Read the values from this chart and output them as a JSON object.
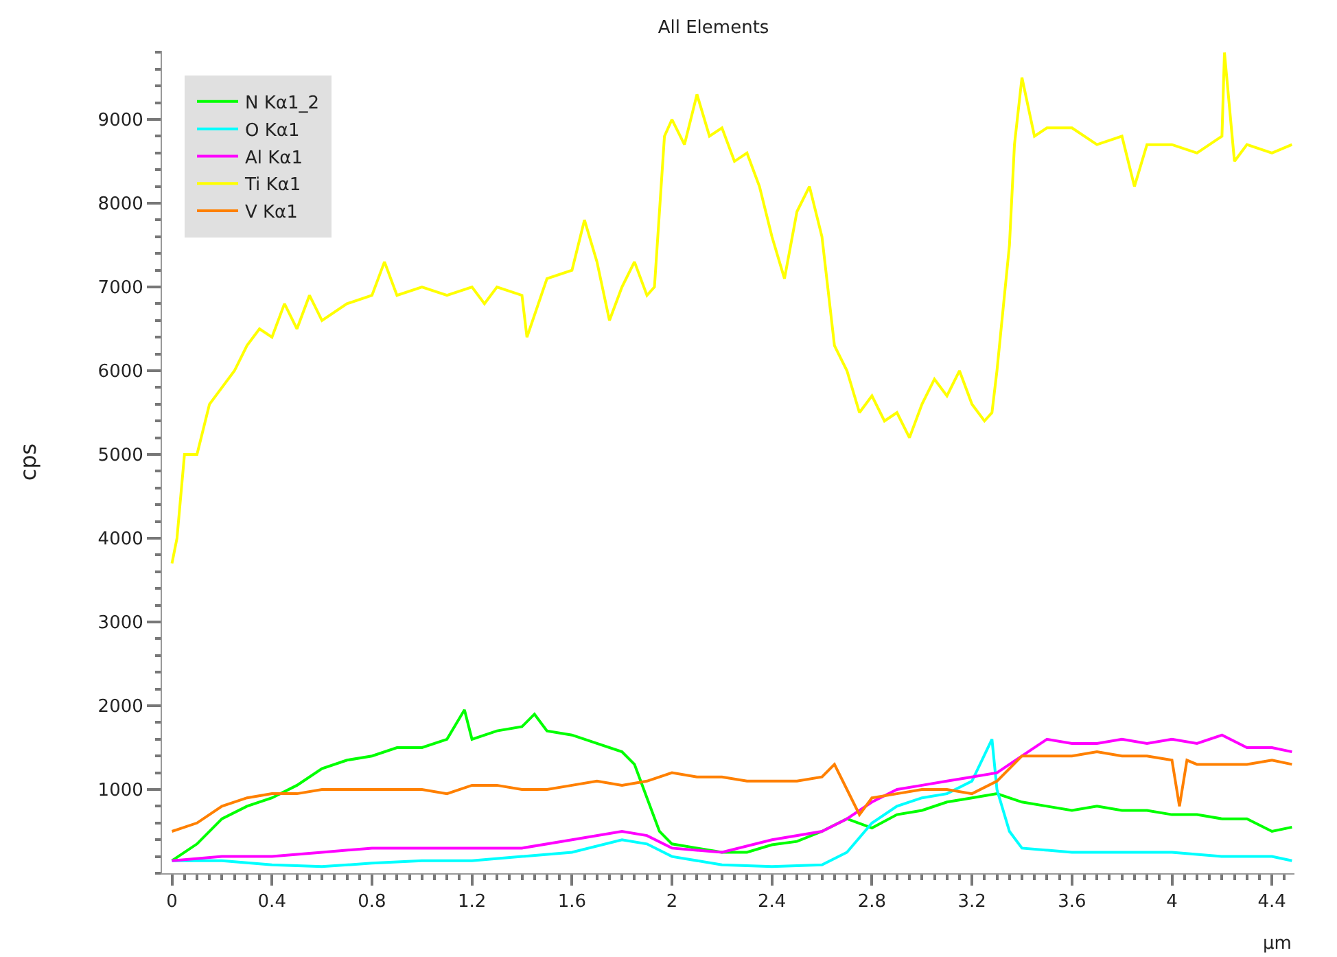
{
  "chart_data": {
    "type": "line",
    "title": "All Elements",
    "xlabel": "µm",
    "ylabel": "cps",
    "xlim": [
      -0.04,
      4.49
    ],
    "xticks": [
      0,
      0.4,
      0.8,
      1.2,
      1.6,
      2,
      2.4,
      2.8,
      3.2,
      3.6,
      4,
      4.4
    ],
    "ylim": [
      0,
      9820
    ],
    "yticks": [
      1000,
      2000,
      3000,
      4000,
      5000,
      6000,
      7000,
      8000,
      9000
    ],
    "grid": false,
    "legend": "top left",
    "marker": "none",
    "line_style": "solid",
    "series": [
      {
        "name": "N Kα1_2",
        "color": "#00ff00",
        "x": [
          0,
          0.1,
          0.2,
          0.3,
          0.4,
          0.5,
          0.6,
          0.7,
          0.8,
          0.9,
          1.0,
          1.1,
          1.17,
          1.2,
          1.3,
          1.4,
          1.45,
          1.5,
          1.6,
          1.7,
          1.8,
          1.85,
          1.9,
          1.95,
          2.0,
          2.1,
          2.2,
          2.3,
          2.4,
          2.5,
          2.6,
          2.7,
          2.8,
          2.9,
          3.0,
          3.1,
          3.2,
          3.3,
          3.4,
          3.5,
          3.6,
          3.7,
          3.8,
          3.9,
          4.0,
          4.1,
          4.2,
          4.3,
          4.4,
          4.48
        ],
        "values": [
          150,
          350,
          650,
          800,
          900,
          1050,
          1250,
          1350,
          1400,
          1500,
          1500,
          1600,
          1950,
          1600,
          1700,
          1750,
          1900,
          1700,
          1650,
          1550,
          1450,
          1300,
          900,
          500,
          350,
          300,
          250,
          250,
          340,
          380,
          500,
          650,
          540,
          700,
          750,
          850,
          900,
          950,
          850,
          800,
          750,
          800,
          750,
          750,
          700,
          700,
          650,
          650,
          500,
          550
        ]
      },
      {
        "name": "O Kα1",
        "color": "#00ffff",
        "x": [
          0,
          0.2,
          0.4,
          0.6,
          0.8,
          1.0,
          1.2,
          1.4,
          1.6,
          1.8,
          1.9,
          2.0,
          2.2,
          2.4,
          2.6,
          2.7,
          2.8,
          2.9,
          3.0,
          3.1,
          3.2,
          3.28,
          3.3,
          3.35,
          3.4,
          3.6,
          3.8,
          4.0,
          4.2,
          4.4,
          4.48
        ],
        "values": [
          150,
          150,
          100,
          80,
          120,
          150,
          150,
          200,
          250,
          400,
          350,
          200,
          100,
          80,
          100,
          250,
          600,
          800,
          900,
          950,
          1100,
          1600,
          1000,
          500,
          300,
          250,
          250,
          250,
          200,
          200,
          150
        ]
      },
      {
        "name": "Al Kα1",
        "color": "#ff00ff",
        "x": [
          0,
          0.2,
          0.4,
          0.6,
          0.8,
          1.0,
          1.2,
          1.4,
          1.6,
          1.8,
          1.9,
          2.0,
          2.2,
          2.4,
          2.6,
          2.7,
          2.8,
          2.9,
          3.0,
          3.1,
          3.2,
          3.3,
          3.4,
          3.5,
          3.6,
          3.7,
          3.8,
          3.9,
          4.0,
          4.1,
          4.2,
          4.3,
          4.4,
          4.48
        ],
        "values": [
          150,
          200,
          200,
          250,
          300,
          300,
          300,
          300,
          400,
          500,
          450,
          300,
          250,
          400,
          500,
          650,
          850,
          1000,
          1050,
          1100,
          1150,
          1200,
          1400,
          1600,
          1550,
          1550,
          1600,
          1550,
          1600,
          1550,
          1650,
          1500,
          1500,
          1450
        ]
      },
      {
        "name": "Ti Kα1",
        "color": "#ffff00",
        "x": [
          0,
          0.02,
          0.05,
          0.1,
          0.15,
          0.2,
          0.25,
          0.3,
          0.35,
          0.4,
          0.45,
          0.5,
          0.55,
          0.6,
          0.7,
          0.8,
          0.85,
          0.9,
          1.0,
          1.1,
          1.2,
          1.25,
          1.3,
          1.4,
          1.42,
          1.5,
          1.6,
          1.65,
          1.7,
          1.75,
          1.8,
          1.85,
          1.9,
          1.93,
          1.97,
          2.0,
          2.05,
          2.1,
          2.15,
          2.2,
          2.25,
          2.3,
          2.35,
          2.4,
          2.45,
          2.5,
          2.55,
          2.6,
          2.65,
          2.7,
          2.75,
          2.8,
          2.85,
          2.9,
          2.95,
          3.0,
          3.05,
          3.1,
          3.15,
          3.2,
          3.25,
          3.28,
          3.3,
          3.35,
          3.37,
          3.4,
          3.45,
          3.5,
          3.6,
          3.7,
          3.8,
          3.85,
          3.9,
          4.0,
          4.1,
          4.2,
          4.21,
          4.25,
          4.3,
          4.4,
          4.48
        ],
        "values": [
          3700,
          4000,
          5000,
          5000,
          5600,
          5800,
          6000,
          6300,
          6500,
          6400,
          6800,
          6500,
          6900,
          6600,
          6800,
          6900,
          7300,
          6900,
          7000,
          6900,
          7000,
          6800,
          7000,
          6900,
          6400,
          7100,
          7200,
          7800,
          7300,
          6600,
          7000,
          7300,
          6900,
          7000,
          8800,
          9000,
          8700,
          9300,
          8800,
          8900,
          8500,
          8600,
          8200,
          7600,
          7100,
          7900,
          8200,
          7600,
          6300,
          6000,
          5500,
          5700,
          5400,
          5500,
          5200,
          5600,
          5900,
          5700,
          6000,
          5600,
          5400,
          5500,
          6000,
          7500,
          8700,
          9500,
          8800,
          8900,
          8900,
          8700,
          8800,
          8200,
          8700,
          8700,
          8600,
          8800,
          9800,
          8500,
          8700,
          8600,
          8700
        ]
      },
      {
        "name": "V Kα1",
        "color": "#ff8000",
        "x": [
          0,
          0.1,
          0.2,
          0.3,
          0.4,
          0.5,
          0.6,
          0.7,
          0.8,
          0.9,
          1.0,
          1.1,
          1.2,
          1.3,
          1.4,
          1.5,
          1.6,
          1.7,
          1.8,
          1.9,
          2.0,
          2.1,
          2.2,
          2.3,
          2.4,
          2.5,
          2.6,
          2.65,
          2.7,
          2.75,
          2.8,
          2.9,
          3.0,
          3.1,
          3.2,
          3.3,
          3.4,
          3.5,
          3.6,
          3.7,
          3.8,
          3.9,
          4.0,
          4.03,
          4.06,
          4.1,
          4.2,
          4.3,
          4.4,
          4.48
        ],
        "values": [
          500,
          600,
          800,
          900,
          950,
          950,
          1000,
          1000,
          1000,
          1000,
          1000,
          950,
          1050,
          1050,
          1000,
          1000,
          1050,
          1100,
          1050,
          1100,
          1200,
          1150,
          1150,
          1100,
          1100,
          1100,
          1150,
          1300,
          1000,
          700,
          900,
          950,
          1000,
          1000,
          950,
          1100,
          1400,
          1400,
          1400,
          1450,
          1400,
          1400,
          1350,
          800,
          1350,
          1300,
          1300,
          1300,
          1350,
          1300
        ]
      }
    ]
  }
}
